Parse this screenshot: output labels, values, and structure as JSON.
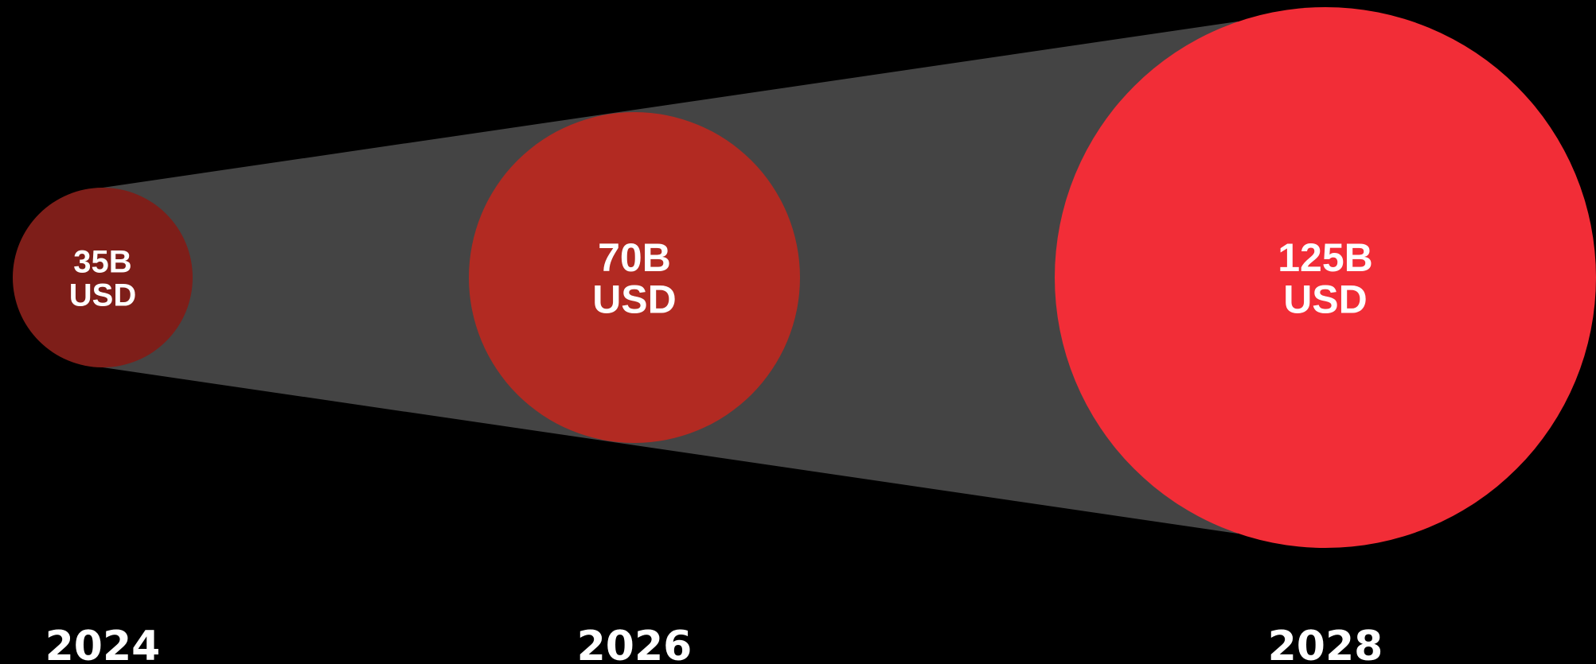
{
  "chart_data": {
    "type": "bubble-growth",
    "title": "",
    "xlabel": "",
    "ylabel": "",
    "categories": [
      "2024",
      "2026",
      "2028"
    ],
    "values": [
      35,
      70,
      125
    ],
    "value_labels": [
      {
        "amount": "35B",
        "unit": "USD"
      },
      {
        "amount": "70B",
        "unit": "USD"
      },
      {
        "amount": "125B",
        "unit": "USD"
      }
    ],
    "colors": [
      "#7e1e19",
      "#b22a22",
      "#f22d37"
    ],
    "band_color": "#444444",
    "background": "#000000"
  }
}
